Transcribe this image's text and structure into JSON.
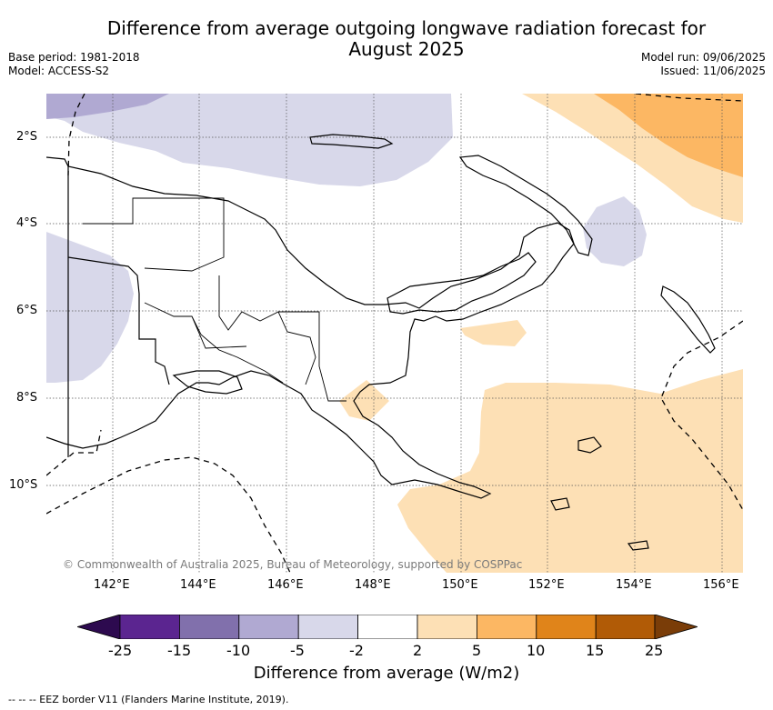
{
  "title": {
    "line1": "Difference from average outgoing longwave radiation forecast for",
    "line2": "August 2025"
  },
  "meta": {
    "base_period": "Base period: 1981-2018",
    "model": "Model: ACCESS-S2",
    "model_run": "Model run: 09/06/2025",
    "issued": "Issued: 11/06/2025"
  },
  "map": {
    "latitude_labels": [
      "2°S",
      "4°S",
      "6°S",
      "8°S",
      "10°S"
    ],
    "longitude_labels": [
      "142°E",
      "144°E",
      "146°E",
      "148°E",
      "150°E",
      "152°E",
      "154°E",
      "156°E"
    ],
    "credit": "© Commonwealth of Australia 2025, Bureau of Meteorology, supported by COSPPac",
    "anomaly_regions": [
      {
        "name": "north-central-negative",
        "category": "-5 to -2",
        "color": "#d8d8ea"
      },
      {
        "name": "northwest-negative",
        "category": "-10 to -5",
        "color": "#b0a9d2"
      },
      {
        "name": "west-negative",
        "category": "-5 to -2",
        "color": "#d8d8ea"
      },
      {
        "name": "new-ireland-negative",
        "category": "-5 to -2",
        "color": "#d8d8ea"
      },
      {
        "name": "northeast-positive",
        "category": "2 to 5",
        "color": "#fde0b5"
      },
      {
        "name": "northeast-core-positive",
        "category": "5 to 10",
        "color": "#fcb763"
      },
      {
        "name": "southeast-positive",
        "category": "2 to 5",
        "color": "#fde0b5"
      },
      {
        "name": "central-patch-positive",
        "category": "2 to 5",
        "color": "#fde0b5"
      },
      {
        "name": "gulf-patch-positive",
        "category": "2 to 5",
        "color": "#fde0b5"
      }
    ]
  },
  "colorbar": {
    "labels": [
      "-25",
      "-15",
      "-10",
      "-5",
      "-2",
      "2",
      "5",
      "10",
      "15",
      "25"
    ],
    "colors": [
      "#2d0a4f",
      "#5b2590",
      "#8170ac",
      "#b0a9d2",
      "#d8d8ea",
      "#ffffff",
      "#fde0b5",
      "#fcb763",
      "#e0841a",
      "#b15b06",
      "#7a3d08"
    ],
    "title": "Difference from average (W/m2)"
  },
  "legend": {
    "eez_note": "--  --  -- EEZ border V11 (Flanders Marine Institute, 2019)."
  }
}
